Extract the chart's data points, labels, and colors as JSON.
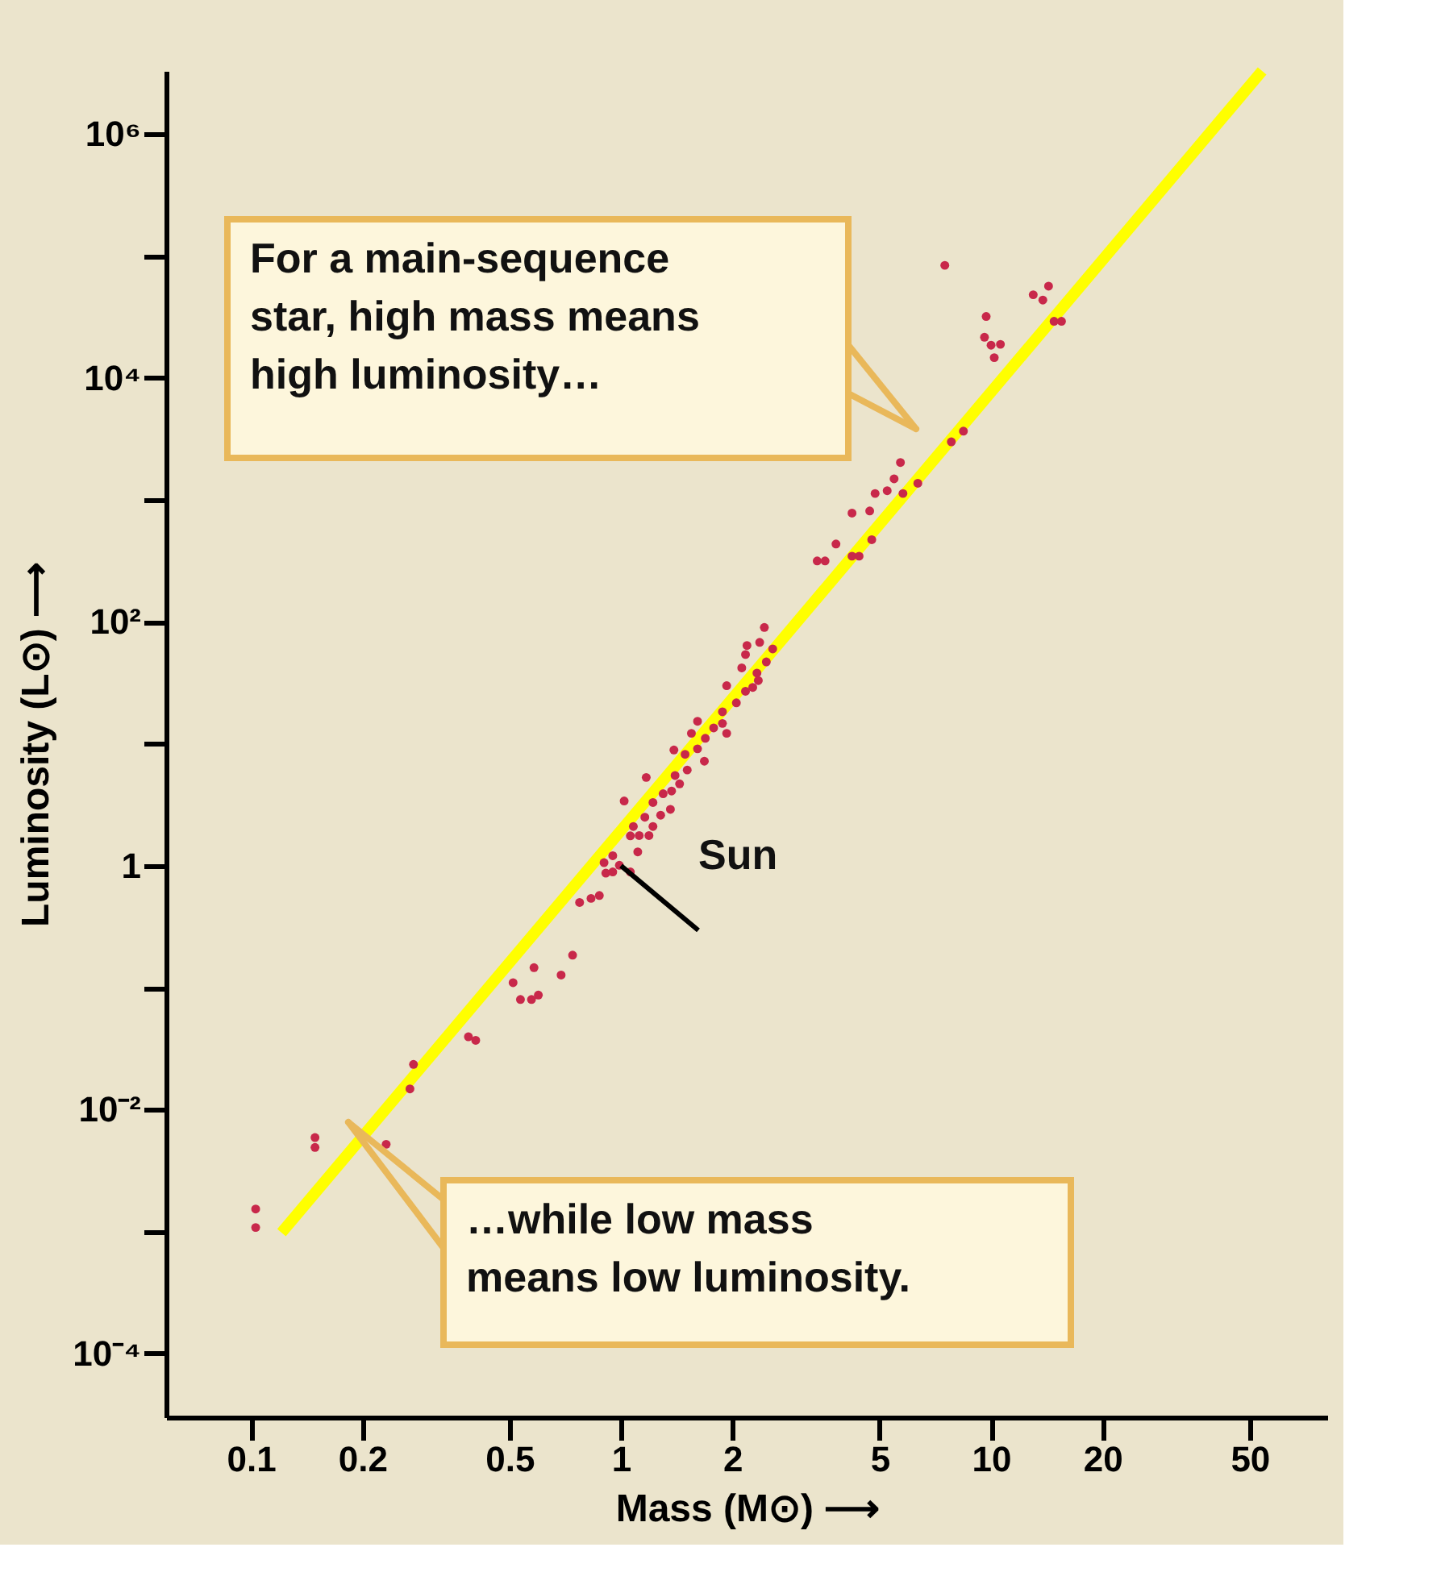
{
  "chart_data": {
    "type": "scatter",
    "xlabel": "Mass (M⊙) ⟶",
    "ylabel": "Luminosity (L⊙) ⟶",
    "log": "xy",
    "grid": false,
    "marker": "circle",
    "xlim": [
      0.059,
      81
    ],
    "ylim": [
      3e-05,
      3300000
    ],
    "xticks": [
      0.1,
      0.2,
      0.5,
      1,
      2,
      5,
      10,
      20,
      50
    ],
    "yticks": [
      {
        "value": 0.0001,
        "label": "10⁻⁴"
      },
      {
        "value": 0.001,
        "label": null
      },
      {
        "value": 0.01,
        "label": "10⁻²"
      },
      {
        "value": 0.1,
        "label": null
      },
      1,
      {
        "value": 10,
        "label": null
      },
      {
        "value": 100,
        "label": "10²"
      },
      {
        "value": 1000,
        "label": null
      },
      {
        "value": 10000,
        "label": "10⁴"
      },
      {
        "value": 100000,
        "label": null
      },
      {
        "value": 1000000,
        "label": "10⁶"
      }
    ],
    "annotations": [
      "For a main-sequence\nstar, high mass means\nhigh luminosity…",
      "…while low mass\nmeans low luminosity.",
      {
        "text": "Sun",
        "x": 1,
        "y": 1
      }
    ],
    "series": [
      {
        "type": "scatter",
        "color": "#c8284a",
        "x": [
          0.103,
          0.103,
          0.149,
          0.149,
          0.232,
          0.275,
          0.269,
          0.387,
          0.405,
          0.511,
          0.535,
          0.573,
          0.598,
          0.582,
          0.689,
          0.74,
          0.773,
          0.83,
          0.874,
          0.91,
          0.95,
          0.9,
          0.95,
          0.99,
          1.06,
          1.02,
          1.11,
          1.06,
          1.12,
          1.19,
          1.08,
          1.16,
          1.22,
          1.28,
          1.36,
          1.17,
          1.22,
          1.3,
          1.37,
          1.44,
          1.4,
          1.51,
          1.39,
          1.49,
          1.68,
          1.61,
          1.55,
          1.69,
          1.61,
          1.78,
          1.88,
          1.93,
          1.88,
          2.05,
          1.93,
          2.17,
          2.27,
          2.33,
          2.35,
          2.47,
          2.12,
          2.19,
          2.17,
          2.37,
          2.57,
          2.44,
          3.39,
          3.56,
          3.81,
          4.21,
          4.4,
          4.21,
          4.7,
          4.76,
          4.86,
          5.24,
          5.47,
          5.78,
          5.69,
          6.34,
          7.81,
          8.42,
          10.2,
          9.6,
          10.0,
          10.6,
          9.7,
          7.5,
          13.0,
          13.8,
          14.3,
          14.8,
          15.5
        ],
        "values": [
          0.00153,
          0.00108,
          0.0059,
          0.0049,
          0.0052,
          0.0235,
          0.0148,
          0.0396,
          0.037,
          0.11,
          0.08,
          0.08,
          0.087,
          0.146,
          0.127,
          0.185,
          0.5,
          0.54,
          0.57,
          0.87,
          0.89,
          1.06,
          1.21,
          1.01,
          0.89,
          3.4,
          1.3,
          1.76,
          1.77,
          1.77,
          2.1,
          2.5,
          2.1,
          2.6,
          2.9,
          5.3,
          3.3,
          3.9,
          4.1,
          4.7,
          5.5,
          6.1,
          8.9,
          8.2,
          7.2,
          9.1,
          12.2,
          11.1,
          15.3,
          13.5,
          14.7,
          12.2,
          18.3,
          21.7,
          30,
          27,
          29,
          38,
          33,
          47,
          42,
          64,
          54,
          68,
          60,
          90,
          316,
          316,
          435,
          346,
          346,
          781,
          812,
          472,
          1130,
          1190,
          1490,
          1130,
          2030,
          1370,
          3000,
          3670,
          14700,
          21600,
          18600,
          18900,
          32000,
          84000,
          48200,
          43600,
          56700,
          29200,
          29200
        ]
      },
      {
        "type": "line",
        "color": "#ffff00",
        "line_style": "solid",
        "marker": "none",
        "x": [
          0.121,
          54
        ],
        "values": [
          0.00098,
          3300000
        ]
      }
    ]
  }
}
